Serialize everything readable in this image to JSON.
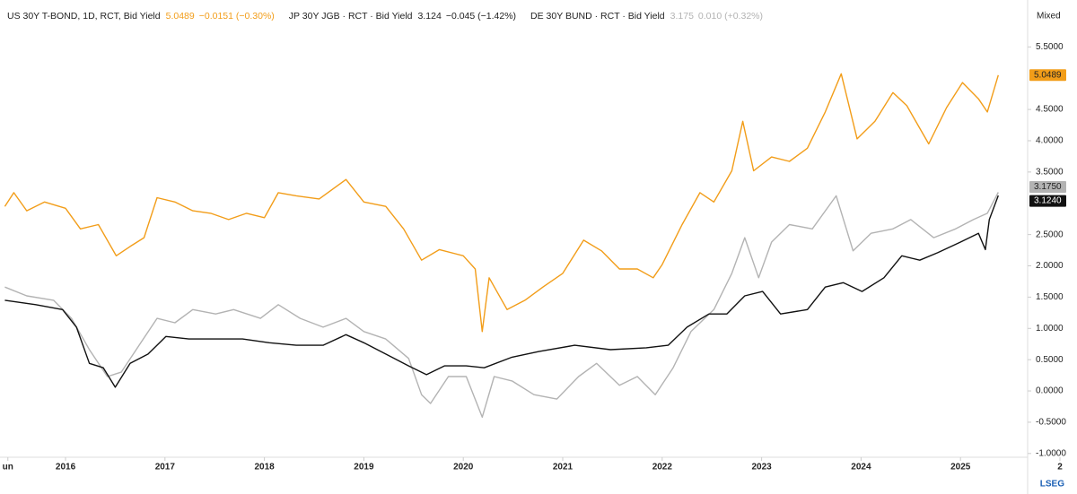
{
  "chart_data": {
    "type": "line",
    "axis_mode": "Mixed",
    "watermark": "LSEG",
    "xlim": [
      2015.341,
      2025.675
    ],
    "ylim": [
      -1.06,
      6.25
    ],
    "xticks": [
      {
        "value": 2015.42,
        "label": "un"
      },
      2016,
      2017,
      2018,
      2019,
      2020,
      2021,
      2022,
      2023,
      2024,
      2025,
      {
        "value": 2026,
        "label": "2"
      }
    ],
    "yticks": [
      {
        "value": 5.5,
        "label": "5.5000"
      },
      {
        "value": 4.5,
        "label": "4.5000"
      },
      {
        "value": 4,
        "label": "4.0000"
      },
      {
        "value": 3.5,
        "label": "3.5000"
      },
      {
        "value": 2.5,
        "label": "2.5000"
      },
      {
        "value": 2,
        "label": "2.0000"
      },
      {
        "value": 1.5,
        "label": "1.5000"
      },
      {
        "value": 1,
        "label": "1.0000"
      },
      {
        "value": 0.5,
        "label": "0.5000"
      },
      {
        "value": 0,
        "label": "0.0000"
      },
      {
        "value": -0.5,
        "label": "-0.5000"
      },
      {
        "value": -1,
        "label": "-1.0000"
      }
    ],
    "series": [
      {
        "name": "US 30Y T-BOND, 1D, RCT, Bid Yield",
        "color": "#f29d19",
        "text_color": "#222",
        "legend_value": "5.0489",
        "legend_change": "−0.0151 (−0.30%)",
        "last_label": "5.0489",
        "x": [
          2015.39,
          2015.48,
          2015.61,
          2015.79,
          2016.0,
          2016.15,
          2016.33,
          2016.51,
          2016.65,
          2016.79,
          2016.92,
          2017.1,
          2017.28,
          2017.46,
          2017.64,
          2017.82,
          2018.0,
          2018.14,
          2018.32,
          2018.55,
          2018.82,
          2019.0,
          2019.22,
          2019.4,
          2019.58,
          2019.76,
          2020.0,
          2020.12,
          2020.19,
          2020.26,
          2020.44,
          2020.62,
          2020.8,
          2021.0,
          2021.21,
          2021.39,
          2021.57,
          2021.75,
          2021.91,
          2022.0,
          2022.2,
          2022.38,
          2022.52,
          2022.7,
          2022.81,
          2022.92,
          2023.1,
          2023.28,
          2023.46,
          2023.64,
          2023.8,
          2023.96,
          2024.14,
          2024.32,
          2024.46,
          2024.68,
          2024.86,
          2025.02,
          2025.18,
          2025.27,
          2025.38
        ],
        "values": [
          2.95,
          3.17,
          2.88,
          3.02,
          2.92,
          2.59,
          2.66,
          2.16,
          2.31,
          2.45,
          3.09,
          3.02,
          2.88,
          2.84,
          2.74,
          2.84,
          2.77,
          3.17,
          3.12,
          3.07,
          3.38,
          3.02,
          2.95,
          2.59,
          2.09,
          2.26,
          2.16,
          1.95,
          0.95,
          1.81,
          1.3,
          1.45,
          1.66,
          1.88,
          2.41,
          2.24,
          1.95,
          1.95,
          1.81,
          2.02,
          2.66,
          3.17,
          3.02,
          3.52,
          4.31,
          3.52,
          3.74,
          3.67,
          3.88,
          4.46,
          5.07,
          4.03,
          4.31,
          4.77,
          4.56,
          3.95,
          4.53,
          4.93,
          4.67,
          4.46,
          5.0489
        ]
      },
      {
        "name": "JP 30Y JGB · RCT · Bid Yield",
        "color": "#111111",
        "text_color": "#ffffff",
        "legend_value": "3.124",
        "legend_change": "−0.045 (−1.42%)",
        "last_label": "3.1240",
        "x": [
          2015.39,
          2015.7,
          2015.97,
          2016.11,
          2016.24,
          2016.38,
          2016.5,
          2016.65,
          2016.83,
          2017.01,
          2017.24,
          2017.51,
          2017.78,
          2018.05,
          2018.32,
          2018.59,
          2018.82,
          2019.0,
          2019.22,
          2019.45,
          2019.63,
          2019.81,
          2020.03,
          2020.21,
          2020.49,
          2020.76,
          2021.12,
          2021.48,
          2021.84,
          2022.06,
          2022.25,
          2022.47,
          2022.65,
          2022.83,
          2023.01,
          2023.19,
          2023.46,
          2023.64,
          2023.82,
          2024.01,
          2024.23,
          2024.41,
          2024.59,
          2024.77,
          2025.0,
          2025.18,
          2025.25,
          2025.29,
          2025.38
        ],
        "values": [
          1.45,
          1.38,
          1.3,
          1.02,
          0.44,
          0.37,
          0.06,
          0.44,
          0.59,
          0.87,
          0.83,
          0.83,
          0.83,
          0.77,
          0.73,
          0.73,
          0.9,
          0.77,
          0.59,
          0.4,
          0.26,
          0.4,
          0.4,
          0.37,
          0.54,
          0.63,
          0.73,
          0.66,
          0.69,
          0.73,
          1.02,
          1.23,
          1.23,
          1.52,
          1.59,
          1.23,
          1.3,
          1.66,
          1.73,
          1.59,
          1.81,
          2.16,
          2.09,
          2.21,
          2.38,
          2.52,
          2.26,
          2.74,
          3.124
        ]
      },
      {
        "name": "DE 30Y BUND · RCT · Bid Yield",
        "color": "#b3b3b3",
        "text_color": "#222",
        "legend_value": "3.175",
        "legend_change": "0.010 (+0.32%)",
        "last_label": "3.1750",
        "x": [
          2015.39,
          2015.61,
          2015.88,
          2016.06,
          2016.24,
          2016.42,
          2016.56,
          2016.74,
          2016.92,
          2017.1,
          2017.28,
          2017.51,
          2017.69,
          2017.96,
          2018.14,
          2018.36,
          2018.59,
          2018.82,
          2019.0,
          2019.22,
          2019.45,
          2019.58,
          2019.67,
          2019.85,
          2020.03,
          2020.19,
          2020.31,
          2020.49,
          2020.71,
          2020.94,
          2021.16,
          2021.34,
          2021.57,
          2021.75,
          2021.93,
          2022.11,
          2022.29,
          2022.52,
          2022.7,
          2022.83,
          2022.97,
          2023.1,
          2023.28,
          2023.51,
          2023.75,
          2023.92,
          2024.1,
          2024.32,
          2024.5,
          2024.73,
          2024.95,
          2025.13,
          2025.27,
          2025.38
        ],
        "values": [
          1.66,
          1.52,
          1.45,
          1.16,
          0.66,
          0.23,
          0.3,
          0.73,
          1.16,
          1.09,
          1.3,
          1.23,
          1.3,
          1.16,
          1.38,
          1.16,
          1.02,
          1.16,
          0.95,
          0.83,
          0.52,
          -0.06,
          -0.2,
          0.23,
          0.23,
          -0.42,
          0.23,
          0.16,
          -0.06,
          -0.13,
          0.23,
          0.44,
          0.09,
          0.23,
          -0.06,
          0.37,
          0.95,
          1.3,
          1.88,
          2.45,
          1.81,
          2.38,
          2.66,
          2.59,
          3.12,
          2.24,
          2.52,
          2.59,
          2.74,
          2.45,
          2.59,
          2.74,
          2.84,
          3.175
        ]
      }
    ]
  }
}
